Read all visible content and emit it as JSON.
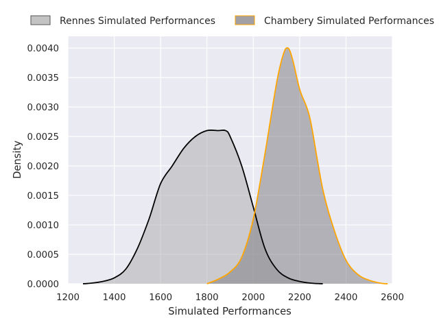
{
  "chart_data": {
    "type": "area",
    "kind": "kde",
    "title": "",
    "xlabel": "Simulated Performances",
    "ylabel": "Density",
    "xlim": [
      1200,
      2600
    ],
    "ylim": [
      0,
      0.0042
    ],
    "xticks": [
      1200,
      1400,
      1600,
      1800,
      2000,
      2200,
      2400,
      2600
    ],
    "yticks": [
      0,
      0.0005,
      0.001,
      0.0015,
      0.002,
      0.0025,
      0.003,
      0.0035,
      0.004
    ],
    "xtick_labels": [
      "1200",
      "1400",
      "1600",
      "1800",
      "2000",
      "2200",
      "2400",
      "2600"
    ],
    "ytick_labels": [
      "0.0000",
      "0.0005",
      "0.0010",
      "0.0015",
      "0.0020",
      "0.0025",
      "0.0030",
      "0.0035",
      "0.0040"
    ],
    "grid": true,
    "legend_position": "top",
    "series": [
      {
        "name": "Rennes Simulated Performances",
        "line_color": "#000000",
        "fill_color": "#a9a9ab",
        "x": [
          1265,
          1300,
          1350,
          1400,
          1450,
          1500,
          1550,
          1600,
          1650,
          1700,
          1750,
          1800,
          1850,
          1880,
          1900,
          1950,
          2000,
          2050,
          2100,
          2150,
          2200,
          2250,
          2300
        ],
        "y": [
          0,
          1e-05,
          4e-05,
          0.0001,
          0.00025,
          0.0006,
          0.0011,
          0.0017,
          0.002,
          0.0023,
          0.0025,
          0.0026,
          0.0026,
          0.0026,
          0.0025,
          0.002,
          0.0013,
          0.0006,
          0.00025,
          0.0001,
          4e-05,
          1e-05,
          0
        ]
      },
      {
        "name": "Chambery Simulated Performances",
        "line_color": "#ffa500",
        "fill_color": "#7a787c",
        "x": [
          1800,
          1850,
          1900,
          1950,
          2000,
          2050,
          2100,
          2130,
          2150,
          2170,
          2200,
          2230,
          2250,
          2300,
          2350,
          2400,
          2450,
          2500,
          2550,
          2580
        ],
        "y": [
          0,
          8e-05,
          0.0002,
          0.00045,
          0.0011,
          0.0022,
          0.0034,
          0.0039,
          0.004,
          0.0038,
          0.0033,
          0.003,
          0.0027,
          0.0016,
          0.0009,
          0.0004,
          0.00016,
          6e-05,
          1e-05,
          0
        ]
      }
    ]
  }
}
